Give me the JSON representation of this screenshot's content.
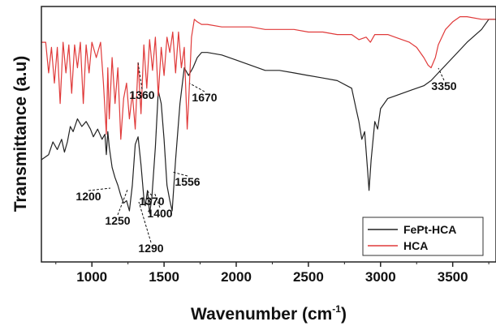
{
  "chart_data": {
    "type": "line",
    "xlabel": "Wavenumber (cm-1)",
    "xlabel_main": "Wavenumber (cm",
    "xlabel_sup": "-1",
    "xlabel_close": ")",
    "ylabel": "Transmittance (a.u)",
    "xlim": [
      650,
      3800
    ],
    "x_ticks": [
      1000,
      1500,
      2000,
      2500,
      3000,
      3500
    ],
    "grid": false,
    "legend_position": "bottom-right",
    "series": [
      {
        "name": "FePt-HCA",
        "color": "#222222",
        "x": [
          650,
          700,
          730,
          760,
          790,
          810,
          830,
          850,
          870,
          900,
          930,
          960,
          990,
          1010,
          1040,
          1070,
          1090,
          1100,
          1110,
          1120,
          1140,
          1160,
          1180,
          1200,
          1220,
          1240,
          1260,
          1280,
          1300,
          1320,
          1340,
          1360,
          1370,
          1385,
          1400,
          1415,
          1440,
          1460,
          1480,
          1500,
          1520,
          1540,
          1556,
          1580,
          1610,
          1640,
          1670,
          1700,
          1730,
          1760,
          1800,
          1900,
          2000,
          2100,
          2200,
          2300,
          2400,
          2500,
          2600,
          2700,
          2800,
          2830,
          2850,
          2870,
          2890,
          2910,
          2920,
          2935,
          2960,
          2980,
          3000,
          3050,
          3100,
          3200,
          3300,
          3350,
          3400,
          3500,
          3600,
          3700,
          3750,
          3800
        ],
        "y": [
          40,
          42,
          47,
          44,
          48,
          43,
          47,
          53,
          51,
          56,
          53,
          55,
          52,
          49,
          52,
          48,
          50,
          42,
          51,
          45,
          37,
          33,
          30,
          26,
          23,
          24,
          20,
          30,
          46,
          49,
          38,
          25,
          22,
          28,
          19,
          25,
          45,
          67,
          62,
          48,
          30,
          24,
          20,
          40,
          62,
          76,
          73,
          76,
          80,
          82,
          82,
          81,
          79,
          77,
          75,
          75,
          74,
          73,
          72,
          71,
          68,
          60,
          55,
          48,
          51,
          36,
          28,
          40,
          55,
          52,
          60,
          64,
          65,
          67,
          69,
          71,
          74,
          80,
          86,
          91,
          95,
          95
        ]
      },
      {
        "name": "HCA",
        "color": "#e03a3a",
        "x": [
          650,
          680,
          700,
          720,
          740,
          760,
          780,
          800,
          820,
          840,
          860,
          880,
          900,
          920,
          940,
          960,
          980,
          1000,
          1030,
          1060,
          1080,
          1100,
          1110,
          1120,
          1140,
          1160,
          1180,
          1200,
          1220,
          1240,
          1260,
          1280,
          1300,
          1320,
          1340,
          1360,
          1380,
          1400,
          1420,
          1440,
          1460,
          1480,
          1500,
          1520,
          1540,
          1560,
          1580,
          1600,
          1620,
          1640,
          1660,
          1670,
          1690,
          1710,
          1730,
          1760,
          1800,
          1900,
          2000,
          2100,
          2200,
          2300,
          2400,
          2500,
          2600,
          2700,
          2800,
          2850,
          2900,
          2930,
          2960,
          3000,
          3050,
          3100,
          3150,
          3200,
          3250,
          3300,
          3330,
          3350,
          3380,
          3400,
          3450,
          3500,
          3550,
          3600,
          3700,
          3800
        ],
        "y": [
          86,
          86,
          74,
          84,
          70,
          84,
          62,
          86,
          74,
          85,
          66,
          85,
          76,
          86,
          62,
          85,
          74,
          86,
          80,
          86,
          70,
          50,
          76,
          56,
          80,
          62,
          76,
          48,
          64,
          70,
          56,
          66,
          52,
          78,
          58,
          85,
          68,
          87,
          75,
          88,
          65,
          84,
          73,
          88,
          82,
          90,
          74,
          90,
          76,
          84,
          52,
          62,
          88,
          95,
          94,
          93,
          93,
          92,
          92,
          92,
          91,
          91,
          91,
          90,
          90,
          89,
          89,
          87,
          88,
          86,
          89,
          89,
          89,
          88,
          87,
          86,
          84,
          80,
          77,
          76,
          80,
          85,
          91,
          94,
          96,
          96,
          95,
          95
        ]
      }
    ],
    "annotations": [
      {
        "text": "1360",
        "x": 1360
      },
      {
        "text": "1670",
        "x": 1670
      },
      {
        "text": "3350",
        "x": 3350
      },
      {
        "text": "1200",
        "x": 1200
      },
      {
        "text": "1250",
        "x": 1250
      },
      {
        "text": "1290",
        "x": 1290
      },
      {
        "text": "1370",
        "x": 1370
      },
      {
        "text": "1400",
        "x": 1400
      },
      {
        "text": "1556",
        "x": 1556
      }
    ]
  }
}
